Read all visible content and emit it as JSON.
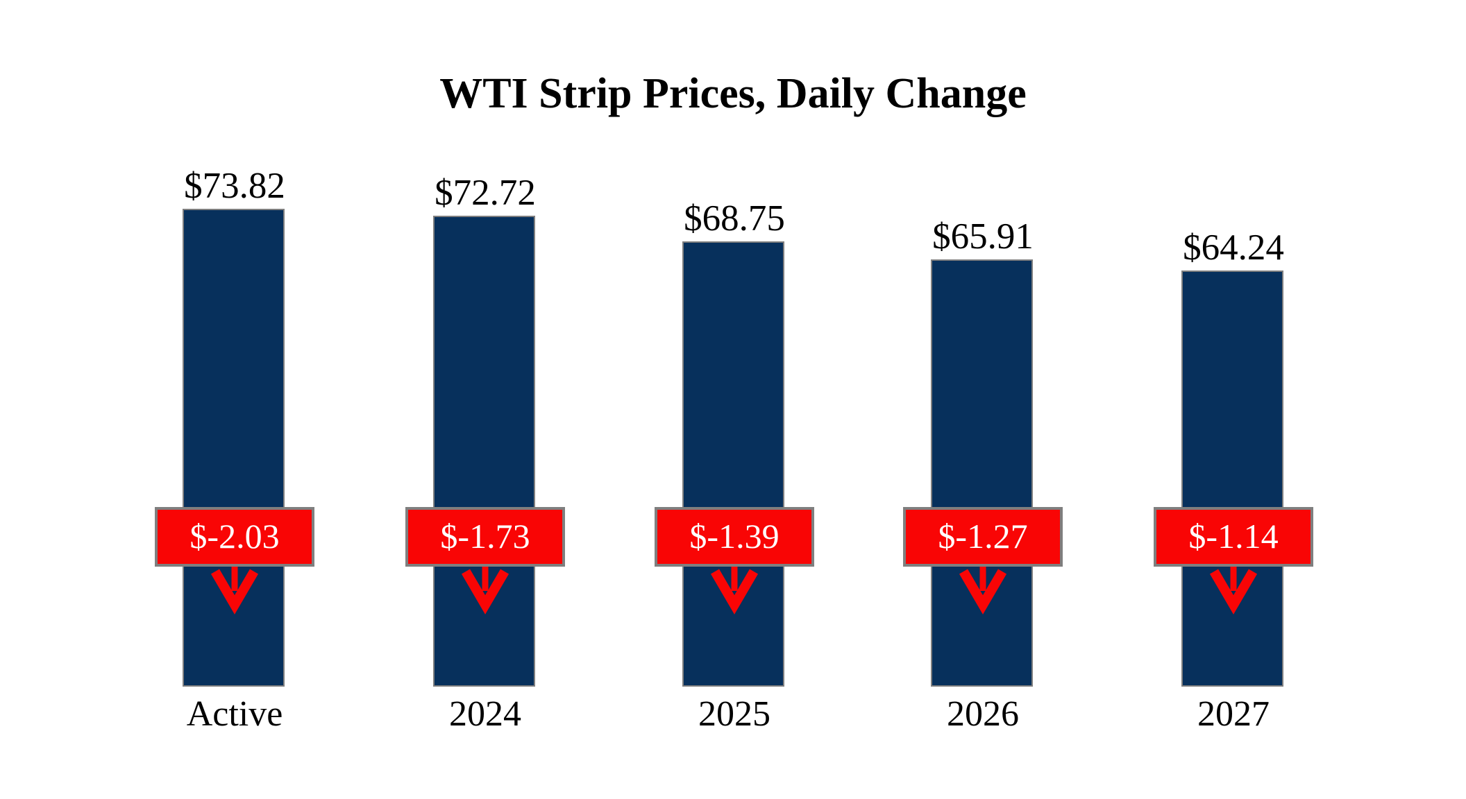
{
  "title": "WTI Strip Prices, Daily Change",
  "chart_data": {
    "type": "bar",
    "title": "WTI Strip Prices, Daily Change",
    "categories": [
      "Active",
      "2024",
      "2025",
      "2026",
      "2027"
    ],
    "values": [
      73.82,
      72.72,
      68.75,
      65.91,
      64.24
    ],
    "value_labels": [
      "$73.82",
      "$72.72",
      "$68.75",
      "$65.91",
      "$64.24"
    ],
    "changes": [
      -2.03,
      -1.73,
      -1.39,
      -1.27,
      -1.14
    ],
    "change_labels": [
      "$-2.03",
      "$-1.73",
      "$-1.39",
      "$-1.27",
      "$-1.14"
    ],
    "xlabel": "",
    "ylabel": "",
    "ylim": [
      0,
      81
    ],
    "grid": false,
    "legend": false,
    "colors": {
      "bar": "#07305C",
      "change_box": "#F90505",
      "box_border": "#7F7F7F",
      "change_text": "#FFFFFF",
      "label_text": "#000000"
    }
  }
}
